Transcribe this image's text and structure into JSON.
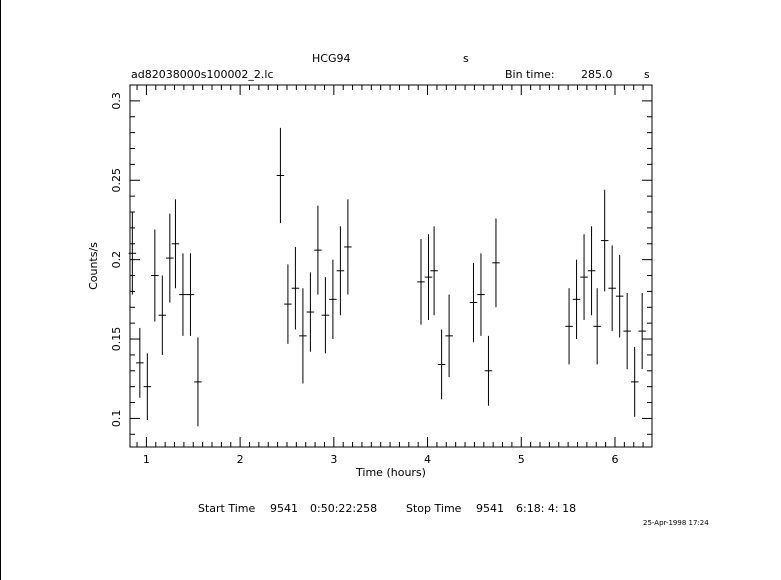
{
  "header": {
    "object": "HCG94",
    "object_unit": "s",
    "filename": "ad82038000s100002_2.lc",
    "bin_time_label": "Bin time:",
    "bin_time_value": "285.0",
    "bin_time_unit": "s"
  },
  "footer": {
    "start_label": "Start Time",
    "start_day": "9541",
    "start_time": "0:50:22:258",
    "stop_label": "Stop Time",
    "stop_day": "9541",
    "stop_time": "6:18: 4: 18",
    "timestamp": "25-Apr-1998 17:24"
  },
  "chart_data": {
    "type": "scatter",
    "title": "",
    "xlabel": "Time (hours)",
    "ylabel": "Counts/s",
    "xlim": [
      0.825,
      6.395
    ],
    "ylim": [
      0.082,
      0.31
    ],
    "x_ticks": [
      1,
      2,
      3,
      4,
      5,
      6
    ],
    "y_ticks": [
      0.1,
      0.15,
      0.2,
      0.25,
      0.3
    ],
    "x_tick_labels": [
      "1",
      "2",
      "3",
      "4",
      "5",
      "6"
    ],
    "y_tick_labels": [
      "0.1",
      "0.15",
      "0.2",
      "0.25",
      "0.3"
    ],
    "grid": false,
    "series": [
      {
        "points": [
          {
            "x": 0.85,
            "y": 0.204,
            "err": 0.026
          },
          {
            "x": 0.93,
            "y": 0.135,
            "err": 0.022
          },
          {
            "x": 1.01,
            "y": 0.12,
            "err": 0.021
          },
          {
            "x": 1.09,
            "y": 0.19,
            "err": 0.029
          },
          {
            "x": 1.17,
            "y": 0.165,
            "err": 0.025
          },
          {
            "x": 1.25,
            "y": 0.201,
            "err": 0.028
          },
          {
            "x": 1.31,
            "y": 0.21,
            "err": 0.028
          },
          {
            "x": 1.39,
            "y": 0.178,
            "err": 0.026
          },
          {
            "x": 1.47,
            "y": 0.178,
            "err": 0.026
          },
          {
            "x": 1.55,
            "y": 0.123,
            "err": 0.028
          },
          {
            "x": 2.43,
            "y": 0.253,
            "err": 0.03
          },
          {
            "x": 2.51,
            "y": 0.172,
            "err": 0.025
          },
          {
            "x": 2.59,
            "y": 0.182,
            "err": 0.026
          },
          {
            "x": 2.67,
            "y": 0.152,
            "err": 0.03
          },
          {
            "x": 2.75,
            "y": 0.167,
            "err": 0.025
          },
          {
            "x": 2.83,
            "y": 0.206,
            "err": 0.028
          },
          {
            "x": 2.91,
            "y": 0.165,
            "err": 0.024
          },
          {
            "x": 2.99,
            "y": 0.175,
            "err": 0.025
          },
          {
            "x": 3.07,
            "y": 0.193,
            "err": 0.028
          },
          {
            "x": 3.15,
            "y": 0.208,
            "err": 0.03
          },
          {
            "x": 3.93,
            "y": 0.186,
            "err": 0.027
          },
          {
            "x": 4.01,
            "y": 0.189,
            "err": 0.027
          },
          {
            "x": 4.07,
            "y": 0.193,
            "err": 0.028
          },
          {
            "x": 4.15,
            "y": 0.134,
            "err": 0.022
          },
          {
            "x": 4.23,
            "y": 0.152,
            "err": 0.026
          },
          {
            "x": 4.49,
            "y": 0.173,
            "err": 0.025
          },
          {
            "x": 4.57,
            "y": 0.178,
            "err": 0.026
          },
          {
            "x": 4.65,
            "y": 0.13,
            "err": 0.022
          },
          {
            "x": 4.73,
            "y": 0.198,
            "err": 0.028
          },
          {
            "x": 5.51,
            "y": 0.158,
            "err": 0.024
          },
          {
            "x": 5.59,
            "y": 0.175,
            "err": 0.025
          },
          {
            "x": 5.67,
            "y": 0.189,
            "err": 0.027
          },
          {
            "x": 5.75,
            "y": 0.193,
            "err": 0.028
          },
          {
            "x": 5.81,
            "y": 0.158,
            "err": 0.024
          },
          {
            "x": 5.89,
            "y": 0.212,
            "err": 0.032
          },
          {
            "x": 5.97,
            "y": 0.182,
            "err": 0.027
          },
          {
            "x": 6.05,
            "y": 0.177,
            "err": 0.026
          },
          {
            "x": 6.13,
            "y": 0.155,
            "err": 0.024
          },
          {
            "x": 6.21,
            "y": 0.123,
            "err": 0.022
          },
          {
            "x": 6.29,
            "y": 0.155,
            "err": 0.024
          }
        ]
      }
    ]
  },
  "colors": {
    "foreground": "#000000",
    "background": "#ffffff"
  }
}
